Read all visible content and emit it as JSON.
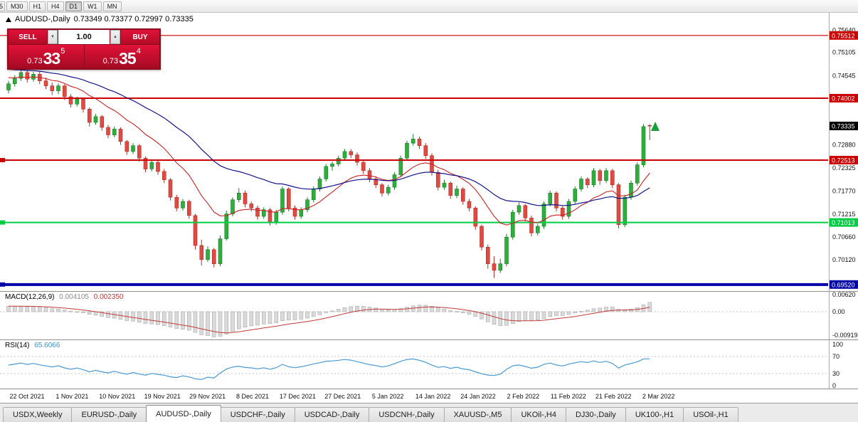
{
  "toolbar": {
    "edge_button": "5",
    "timeframes": [
      {
        "label": "M30",
        "active": false
      },
      {
        "label": "H1",
        "active": false
      },
      {
        "label": "H4",
        "active": false
      },
      {
        "label": "D1",
        "active": true
      },
      {
        "label": "W1",
        "active": false
      },
      {
        "label": "MN",
        "active": false
      }
    ]
  },
  "chart_header": {
    "symbol_title": "AUDUSD-,Daily",
    "ohlc": "0.73349 0.73377 0.72997 0.73335"
  },
  "trade_panel": {
    "sell_label": "SELL",
    "buy_label": "BUY",
    "volume": "1.00",
    "volume_down_icon": "▼",
    "volume_up_icon": "▲",
    "sell_price": {
      "prefix": "0.73",
      "big": "33",
      "sup": "5"
    },
    "buy_price": {
      "prefix": "0.73",
      "big": "35",
      "sup": "4"
    }
  },
  "price_axis": {
    "ticks": [
      {
        "label": "0.75640",
        "value": 0.7564
      },
      {
        "label": "0.75105",
        "value": 0.75105
      },
      {
        "label": "0.74545",
        "value": 0.74545
      },
      {
        "label": "0.72880",
        "value": 0.7288
      },
      {
        "label": "0.72325",
        "value": 0.72325
      },
      {
        "label": "0.71770",
        "value": 0.7177
      },
      {
        "label": "0.71215",
        "value": 0.71215
      },
      {
        "label": "0.70660",
        "value": 0.7066
      },
      {
        "label": "0.70120",
        "value": 0.7012
      }
    ],
    "current_price": {
      "label": "0.73335",
      "value": 0.73335,
      "color": "#000000"
    },
    "levels": [
      {
        "label": "0.75512",
        "value": 0.75512,
        "color": "#cc0000",
        "width": 1.2,
        "left_marker": false
      },
      {
        "label": "0.74002",
        "value": 0.74002,
        "color": "#cc0000",
        "width": 2,
        "left_marker": false
      },
      {
        "label": "0.72513",
        "value": 0.72513,
        "color": "#cc0000",
        "width": 2,
        "left_marker": true
      },
      {
        "label": "0.71013",
        "value": 0.71013,
        "color": "#00cc44",
        "width": 2,
        "left_marker": true
      },
      {
        "label": "0.69520",
        "value": 0.6952,
        "color": "#0000a8",
        "width": 4,
        "left_marker": true
      }
    ]
  },
  "chart_data": {
    "type": "candlestick",
    "title": "AUDUSD-,Daily",
    "current_bar": {
      "open": 0.73349,
      "high": 0.73377,
      "low": 0.72997,
      "close": 0.73335
    },
    "y_range": [
      0.6938,
      0.758
    ],
    "grid": false,
    "candles": [
      [
        0.742,
        0.7442,
        0.7412,
        0.7435
      ],
      [
        0.7435,
        0.7455,
        0.7428,
        0.7448
      ],
      [
        0.7448,
        0.7468,
        0.7442,
        0.7462
      ],
      [
        0.7462,
        0.7466,
        0.7438,
        0.7446
      ],
      [
        0.7446,
        0.7464,
        0.744,
        0.7458
      ],
      [
        0.7458,
        0.7464,
        0.7434,
        0.7442
      ],
      [
        0.7442,
        0.745,
        0.7422,
        0.743
      ],
      [
        0.743,
        0.7438,
        0.7408,
        0.7418
      ],
      [
        0.7418,
        0.7436,
        0.741,
        0.743
      ],
      [
        0.743,
        0.7434,
        0.7396,
        0.7404
      ],
      [
        0.7404,
        0.741,
        0.7378,
        0.7386
      ],
      [
        0.7386,
        0.7404,
        0.738,
        0.7398
      ],
      [
        0.7398,
        0.7402,
        0.7366,
        0.7374
      ],
      [
        0.7374,
        0.7378,
        0.7332,
        0.7342
      ],
      [
        0.7342,
        0.7362,
        0.7336,
        0.7356
      ],
      [
        0.7356,
        0.736,
        0.7322,
        0.733
      ],
      [
        0.733,
        0.7336,
        0.7304,
        0.7312
      ],
      [
        0.7312,
        0.7332,
        0.7306,
        0.7326
      ],
      [
        0.7326,
        0.733,
        0.7288,
        0.7296
      ],
      [
        0.7296,
        0.73,
        0.7264,
        0.7272
      ],
      [
        0.7272,
        0.7292,
        0.7266,
        0.7286
      ],
      [
        0.7286,
        0.729,
        0.7248,
        0.7256
      ],
      [
        0.7256,
        0.726,
        0.7222,
        0.723
      ],
      [
        0.723,
        0.7252,
        0.7224,
        0.7246
      ],
      [
        0.7246,
        0.725,
        0.7216,
        0.7224
      ],
      [
        0.7224,
        0.723,
        0.7196,
        0.7204
      ],
      [
        0.7204,
        0.7208,
        0.7154,
        0.7162
      ],
      [
        0.7162,
        0.7168,
        0.7128,
        0.7136
      ],
      [
        0.7136,
        0.7158,
        0.713,
        0.7152
      ],
      [
        0.7152,
        0.7156,
        0.711,
        0.7118
      ],
      [
        0.7118,
        0.7122,
        0.7036,
        0.7046
      ],
      [
        0.7046,
        0.706,
        0.6998,
        0.7012
      ],
      [
        0.7012,
        0.7044,
        0.7006,
        0.7036
      ],
      [
        0.7036,
        0.704,
        0.6993,
        0.7002
      ],
      [
        0.7002,
        0.707,
        0.6996,
        0.7062
      ],
      [
        0.7062,
        0.713,
        0.7058,
        0.7122
      ],
      [
        0.7122,
        0.7162,
        0.7116,
        0.7156
      ],
      [
        0.7156,
        0.7184,
        0.715,
        0.7172
      ],
      [
        0.7172,
        0.7178,
        0.7138,
        0.7146
      ],
      [
        0.7146,
        0.7152,
        0.7128,
        0.7136
      ],
      [
        0.7136,
        0.7142,
        0.7108,
        0.7116
      ],
      [
        0.7116,
        0.7138,
        0.711,
        0.7132
      ],
      [
        0.7132,
        0.7136,
        0.7094,
        0.7102
      ],
      [
        0.7102,
        0.7132,
        0.7096,
        0.7126
      ],
      [
        0.7126,
        0.7188,
        0.712,
        0.7182
      ],
      [
        0.7182,
        0.7186,
        0.7128,
        0.7136
      ],
      [
        0.7136,
        0.7142,
        0.7108,
        0.7116
      ],
      [
        0.7116,
        0.7138,
        0.711,
        0.7132
      ],
      [
        0.7132,
        0.7162,
        0.7126,
        0.7156
      ],
      [
        0.7156,
        0.7188,
        0.715,
        0.7182
      ],
      [
        0.7182,
        0.7212,
        0.7176,
        0.7206
      ],
      [
        0.7206,
        0.7242,
        0.72,
        0.7236
      ],
      [
        0.7236,
        0.7248,
        0.7226,
        0.7242
      ],
      [
        0.7242,
        0.7262,
        0.7236,
        0.7256
      ],
      [
        0.7256,
        0.7278,
        0.725,
        0.7272
      ],
      [
        0.7272,
        0.7278,
        0.7256,
        0.7264
      ],
      [
        0.7264,
        0.727,
        0.7238,
        0.7246
      ],
      [
        0.7246,
        0.725,
        0.7218,
        0.7226
      ],
      [
        0.7226,
        0.7232,
        0.7198,
        0.7206
      ],
      [
        0.7206,
        0.7212,
        0.7184,
        0.7192
      ],
      [
        0.7192,
        0.7196,
        0.7164,
        0.7172
      ],
      [
        0.7172,
        0.7192,
        0.7166,
        0.7186
      ],
      [
        0.7186,
        0.7222,
        0.718,
        0.7216
      ],
      [
        0.7216,
        0.7262,
        0.721,
        0.7256
      ],
      [
        0.7256,
        0.7298,
        0.725,
        0.7292
      ],
      [
        0.7292,
        0.7314,
        0.7286,
        0.7302
      ],
      [
        0.7302,
        0.7308,
        0.7278,
        0.7286
      ],
      [
        0.7286,
        0.7292,
        0.7254,
        0.7262
      ],
      [
        0.7262,
        0.7268,
        0.7214,
        0.7222
      ],
      [
        0.7222,
        0.7228,
        0.7178,
        0.7186
      ],
      [
        0.7186,
        0.7204,
        0.718,
        0.7196
      ],
      [
        0.7196,
        0.72,
        0.7158,
        0.7166
      ],
      [
        0.7166,
        0.719,
        0.716,
        0.7182
      ],
      [
        0.7182,
        0.7186,
        0.7144,
        0.7152
      ],
      [
        0.7152,
        0.7158,
        0.7128,
        0.7136
      ],
      [
        0.7136,
        0.714,
        0.7084,
        0.7092
      ],
      [
        0.7092,
        0.7096,
        0.7034,
        0.7042
      ],
      [
        0.7042,
        0.7048,
        0.699,
        0.7002
      ],
      [
        0.7002,
        0.702,
        0.6968,
        0.6986
      ],
      [
        0.6986,
        0.7014,
        0.698,
        0.7002
      ],
      [
        0.7002,
        0.7074,
        0.6996,
        0.7066
      ],
      [
        0.7066,
        0.7132,
        0.706,
        0.7126
      ],
      [
        0.7126,
        0.715,
        0.712,
        0.7142
      ],
      [
        0.7142,
        0.7146,
        0.7104,
        0.7112
      ],
      [
        0.7112,
        0.7118,
        0.7068,
        0.7076
      ],
      [
        0.7076,
        0.7098,
        0.707,
        0.7092
      ],
      [
        0.7092,
        0.7152,
        0.7086,
        0.7146
      ],
      [
        0.7146,
        0.7178,
        0.714,
        0.7172
      ],
      [
        0.7172,
        0.7176,
        0.7128,
        0.7136
      ],
      [
        0.7136,
        0.7142,
        0.7108,
        0.7116
      ],
      [
        0.7116,
        0.7158,
        0.711,
        0.7152
      ],
      [
        0.7152,
        0.7188,
        0.7146,
        0.7182
      ],
      [
        0.7182,
        0.7212,
        0.7176,
        0.7206
      ],
      [
        0.7206,
        0.721,
        0.7184,
        0.7192
      ],
      [
        0.7192,
        0.7232,
        0.7186,
        0.7226
      ],
      [
        0.7226,
        0.723,
        0.7192,
        0.7202
      ],
      [
        0.7202,
        0.7232,
        0.7196,
        0.7226
      ],
      [
        0.7226,
        0.723,
        0.7184,
        0.7192
      ],
      [
        0.7192,
        0.7196,
        0.7087,
        0.7096
      ],
      [
        0.7096,
        0.7168,
        0.709,
        0.7162
      ],
      [
        0.7162,
        0.7202,
        0.7156,
        0.7196
      ],
      [
        0.7196,
        0.7246,
        0.719,
        0.724
      ],
      [
        0.724,
        0.7338,
        0.7234,
        0.7332
      ],
      [
        0.73349,
        0.73377,
        0.72997,
        0.73335
      ]
    ],
    "ma_fast": {
      "period": 13,
      "color": "#cc2222"
    },
    "ma_slow": {
      "period": 34,
      "color": "#14148c"
    },
    "macd": {
      "label": "MACD(12,26,9)",
      "value_main": "0.004105",
      "value_signal": "0.002350",
      "fast": 12,
      "slow": 26,
      "signal": 9,
      "axis": [
        "0.00620",
        "0.00",
        "-0.00919"
      ]
    },
    "rsi": {
      "label": "RSI(14)",
      "value": "65.6066",
      "period": 14,
      "axis": [
        "100",
        "70",
        "30",
        "0"
      ],
      "level_lines": [
        70,
        30
      ]
    },
    "dates": [
      "22 Oct 2021",
      "1 Nov 2021",
      "10 Nov 2021",
      "19 Nov 2021",
      "29 Nov 2021",
      "8 Dec 2021",
      "17 Dec 2021",
      "27 Dec 2021",
      "5 Jan 2022",
      "14 Jan 2022",
      "24 Jan 2022",
      "2 Feb 2022",
      "11 Feb 2022",
      "21 Feb 2022",
      "2 Mar 2022"
    ],
    "legend_position": "none"
  },
  "bottom_tabs": [
    {
      "label": "USDX,Weekly",
      "active": false
    },
    {
      "label": "EURUSD-,Daily",
      "active": false
    },
    {
      "label": "AUDUSD-,Daily",
      "active": true
    },
    {
      "label": "USDCHF-,Daily",
      "active": false
    },
    {
      "label": "USDCAD-,Daily",
      "active": false
    },
    {
      "label": "USDCNH-,Daily",
      "active": false
    },
    {
      "label": "XAUUSD-,M5",
      "active": false
    },
    {
      "label": "UKOil-,H4",
      "active": false
    },
    {
      "label": "DJ30-,Daily",
      "active": false
    },
    {
      "label": "UK100-,H1",
      "active": false
    },
    {
      "label": "USOil-,H1",
      "active": false
    }
  ]
}
